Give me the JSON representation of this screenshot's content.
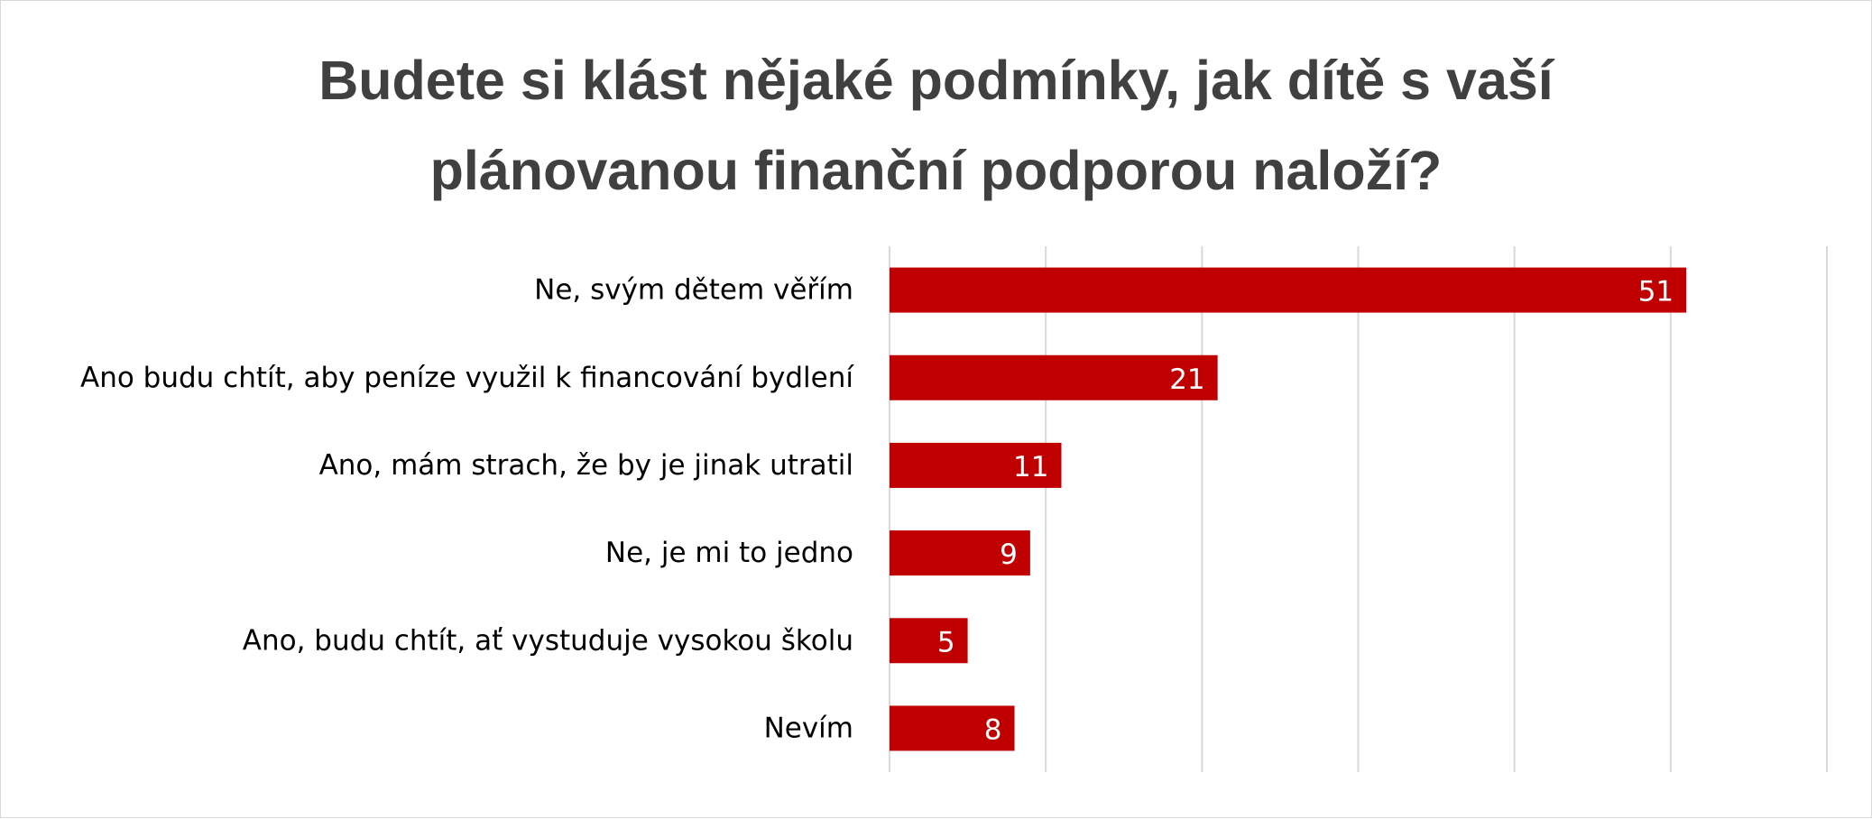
{
  "chart_data": {
    "type": "bar",
    "orientation": "horizontal",
    "title": "Budete si klást nějaké podmínky, jak dítě s vaší plánovanou finanční podporou naloží?",
    "title_lines": [
      "Budete si klást nějaké podmínky, jak dítě s vaší",
      "plánovanou finanční podporou naloží?"
    ],
    "categories": [
      "Ne, svým dětem věřím",
      "Ano budu chtít, aby peníze využil k financování bydlení",
      "Ano, mám strach, že by je jinak utratil",
      "Ne, je mi to jedno",
      "Ano, budu chtít, ať vystuduje vysokou školu",
      "Nevím"
    ],
    "values": [
      51,
      21,
      11,
      9,
      5,
      8
    ],
    "xlim": [
      0,
      60
    ],
    "xtick_step": 10,
    "grid": "vertical",
    "data_labels": "inside-end",
    "bar_color": "#c00000",
    "grid_color": "#d9d9d9",
    "label_color": "#ffffff",
    "title_color": "#404040"
  }
}
